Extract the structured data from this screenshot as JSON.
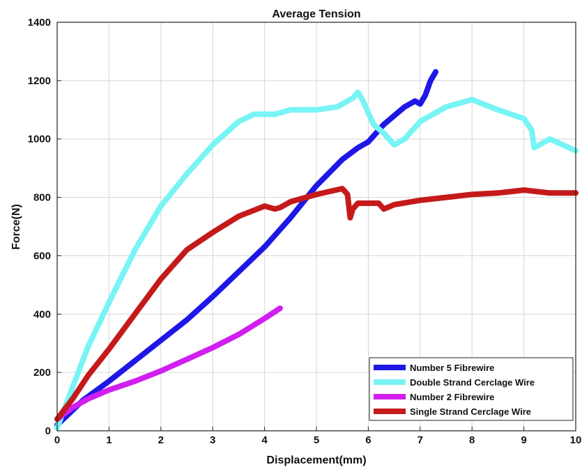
{
  "chart_data": {
    "type": "line",
    "title": "Average Tension",
    "xlabel": "Displacement(mm)",
    "ylabel": "Force(N)",
    "xlim": [
      0,
      10
    ],
    "ylim": [
      0,
      1400
    ],
    "xticks": [
      0,
      1,
      2,
      3,
      4,
      5,
      6,
      7,
      8,
      9,
      10
    ],
    "yticks": [
      0,
      200,
      400,
      600,
      800,
      1000,
      1200,
      1400
    ],
    "grid": true,
    "legend_position": "bottom-right",
    "series": [
      {
        "name": "Number 5 Fibrewire",
        "color": "#1f17e6",
        "x": [
          0,
          0.5,
          1,
          1.5,
          2,
          2.5,
          3,
          3.5,
          4,
          4.5,
          5,
          5.5,
          5.8,
          6,
          6.3,
          6.5,
          6.7,
          6.9,
          7.0,
          7.1,
          7.2,
          7.3
        ],
        "y": [
          20,
          105,
          170,
          240,
          310,
          380,
          460,
          545,
          630,
          730,
          840,
          930,
          970,
          990,
          1050,
          1080,
          1110,
          1130,
          1120,
          1150,
          1200,
          1230
        ]
      },
      {
        "name": "Double Strand Cerclage Wire",
        "color": "#78f4f4",
        "x": [
          0,
          0.3,
          0.6,
          1,
          1.5,
          2,
          2.5,
          3,
          3.5,
          3.8,
          4.2,
          4.5,
          4.8,
          5,
          5.4,
          5.7,
          5.8,
          5.9,
          6.1,
          6.3,
          6.5,
          6.7,
          7.0,
          7.5,
          8.0,
          8.5,
          9.0,
          9.15,
          9.2,
          9.5,
          10
        ],
        "y": [
          10,
          150,
          290,
          440,
          620,
          770,
          880,
          980,
          1060,
          1085,
          1085,
          1100,
          1100,
          1100,
          1110,
          1140,
          1160,
          1130,
          1050,
          1020,
          980,
          1000,
          1060,
          1110,
          1135,
          1100,
          1070,
          1030,
          970,
          1000,
          960
        ]
      },
      {
        "name": "Number 2 Fibrewire",
        "color": "#d01ff0",
        "x": [
          0,
          0.3,
          0.6,
          1,
          1.5,
          2,
          2.5,
          3,
          3.5,
          4,
          4.3
        ],
        "y": [
          40,
          80,
          110,
          140,
          170,
          205,
          245,
          285,
          330,
          385,
          420
        ]
      },
      {
        "name": "Single Strand Cerclage Wire",
        "color": "#c41a1a",
        "x": [
          0,
          0.3,
          0.6,
          1,
          1.5,
          2,
          2.5,
          3,
          3.5,
          4,
          4.2,
          4.3,
          4.5,
          5,
          5.5,
          5.6,
          5.65,
          5.7,
          5.8,
          6.2,
          6.3,
          6.5,
          7,
          7.5,
          8,
          8.5,
          9,
          9.5,
          10
        ],
        "y": [
          40,
          110,
          190,
          280,
          400,
          520,
          620,
          680,
          735,
          770,
          760,
          765,
          785,
          810,
          830,
          810,
          730,
          760,
          780,
          780,
          760,
          775,
          790,
          800,
          810,
          815,
          825,
          815,
          815
        ]
      }
    ]
  }
}
